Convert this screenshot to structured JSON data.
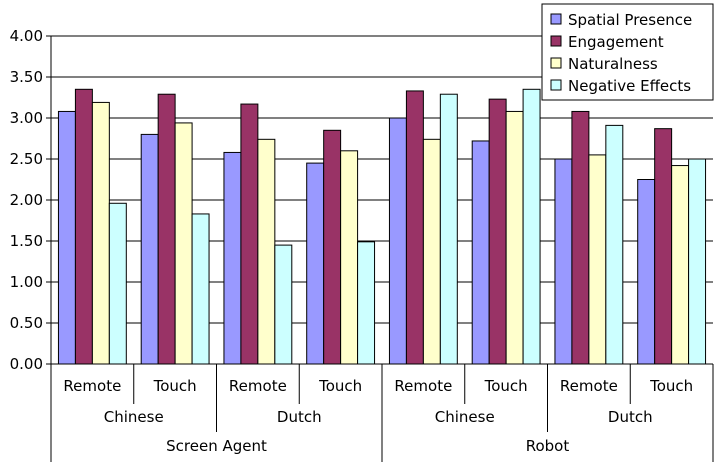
{
  "chart_data": {
    "type": "bar",
    "title": "",
    "xlabel": "",
    "ylabel": "",
    "ylim": [
      0,
      4
    ],
    "y_ticks": [
      "0.00",
      "0.50",
      "1.00",
      "1.50",
      "2.00",
      "2.50",
      "3.00",
      "3.50",
      "4.00"
    ],
    "y_tick_values": [
      0,
      0.5,
      1,
      1.5,
      2,
      2.5,
      3,
      3.5,
      4
    ],
    "grid": "horizontal",
    "legend_position": "top-right",
    "categories": [
      "Screen Agent / Chinese / Remote",
      "Screen Agent / Chinese / Touch",
      "Screen Agent / Dutch / Remote",
      "Screen Agent / Dutch / Touch",
      "Robot / Chinese / Remote",
      "Robot / Chinese / Touch",
      "Robot / Dutch / Remote",
      "Robot / Dutch / Touch"
    ],
    "category_levels": {
      "level1": [
        "Remote",
        "Touch",
        "Remote",
        "Touch",
        "Remote",
        "Touch",
        "Remote",
        "Touch"
      ],
      "level2": [
        "Chinese",
        "Dutch",
        "Chinese",
        "Dutch"
      ],
      "level3": [
        "Screen Agent",
        "Robot"
      ]
    },
    "series": [
      {
        "name": "Spatial Presence",
        "color": "#9999ff",
        "values": [
          3.08,
          2.8,
          2.58,
          2.45,
          3.0,
          2.72,
          2.5,
          2.25
        ]
      },
      {
        "name": "Engagement",
        "color": "#993366",
        "values": [
          3.35,
          3.29,
          3.17,
          2.85,
          3.33,
          3.23,
          3.08,
          2.87
        ]
      },
      {
        "name": "Naturalness",
        "color": "#ffffcc",
        "values": [
          3.19,
          2.94,
          2.74,
          2.6,
          2.74,
          3.08,
          2.55,
          2.42
        ]
      },
      {
        "name": "Negative Effects",
        "color": "#ccffff",
        "values": [
          1.96,
          1.83,
          1.45,
          1.49,
          3.29,
          3.35,
          2.91,
          2.5
        ]
      }
    ]
  }
}
